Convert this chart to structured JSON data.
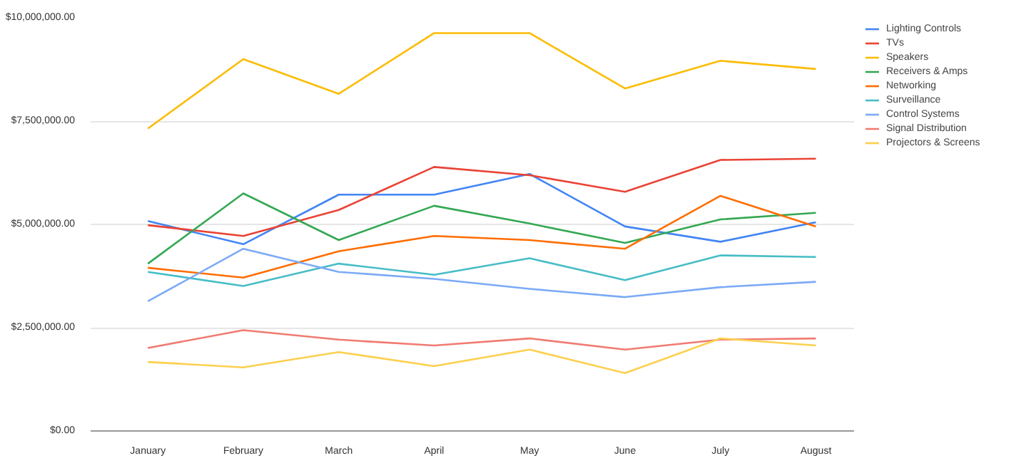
{
  "chart_data": {
    "type": "line",
    "categories": [
      "January",
      "February",
      "March",
      "April",
      "May",
      "June",
      "July",
      "August"
    ],
    "ylim": [
      0,
      10000000
    ],
    "yticks": [
      {
        "value": 0,
        "label": "$0.00"
      },
      {
        "value": 2500000,
        "label": "$2,500,000.00"
      },
      {
        "value": 5000000,
        "label": "$5,000,000.00"
      },
      {
        "value": 7500000,
        "label": "$7,500,000.00"
      },
      {
        "value": 10000000,
        "label": "$10,000,000.00"
      }
    ],
    "grid": "y",
    "legend": "right",
    "marker": "none",
    "line_style": "solid",
    "series": [
      {
        "name": "Lighting Controls",
        "color": "#4285f4",
        "values": [
          5080000,
          4520000,
          5720000,
          5720000,
          6220000,
          4950000,
          4580000,
          5050000
        ]
      },
      {
        "name": "TVs",
        "color": "#ea4335",
        "values": [
          4980000,
          4720000,
          5350000,
          6390000,
          6190000,
          5790000,
          6560000,
          6590000
        ]
      },
      {
        "name": "Speakers",
        "color": "#fbbc04",
        "values": [
          7320000,
          9000000,
          8160000,
          9630000,
          9630000,
          8290000,
          8960000,
          8760000
        ]
      },
      {
        "name": "Receivers & Amps",
        "color": "#34a853",
        "values": [
          4050000,
          5750000,
          4620000,
          5450000,
          5020000,
          4550000,
          5120000,
          5280000
        ]
      },
      {
        "name": "Networking",
        "color": "#ff6d01",
        "values": [
          3950000,
          3710000,
          4350000,
          4720000,
          4620000,
          4410000,
          5690000,
          4950000
        ]
      },
      {
        "name": "Surveillance",
        "color": "#46bdc6",
        "values": [
          3850000,
          3510000,
          4050000,
          3780000,
          4180000,
          3650000,
          4250000,
          4210000
        ]
      },
      {
        "name": "Control Systems",
        "color": "#7baaf7",
        "values": [
          3140000,
          4410000,
          3850000,
          3680000,
          3440000,
          3240000,
          3480000,
          3610000
        ]
      },
      {
        "name": "Signal Distribution",
        "color": "#f07b72",
        "values": [
          2010000,
          2440000,
          2210000,
          2070000,
          2240000,
          1970000,
          2210000,
          2240000
        ]
      },
      {
        "name": "Projectors & Screens",
        "color": "#fcd04f",
        "values": [
          1670000,
          1540000,
          1910000,
          1570000,
          1970000,
          1400000,
          2240000,
          2070000
        ]
      }
    ]
  }
}
